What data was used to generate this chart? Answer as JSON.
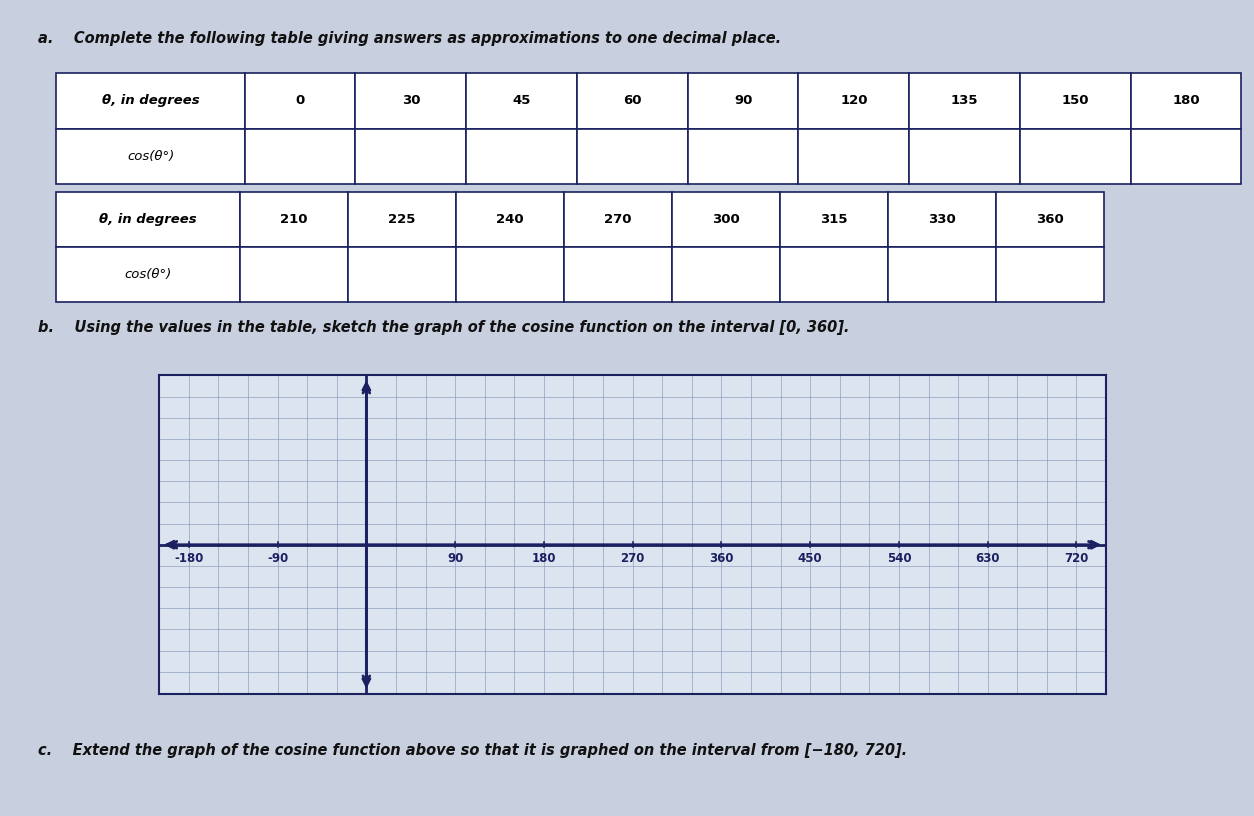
{
  "title_a": "a.    Complete the following table giving answers as approximations to one decimal place.",
  "title_b": "b.    Using the values in the table, sketch the graph of the cosine function on the interval [0, 360].",
  "title_c": "c.    Extend the graph of the cosine function above so that it is graphed on the interval from [−180, 720].",
  "table1_headers": [
    "θ, in degrees",
    "0",
    "30",
    "45",
    "60",
    "90",
    "120",
    "135",
    "150",
    "180"
  ],
  "table1_row2": [
    "cos(θ°)",
    "",
    "",
    "",
    "",
    "",
    "",
    "",
    "",
    ""
  ],
  "table2_headers": [
    "θ, in degrees",
    "210",
    "225",
    "240",
    "270",
    "300",
    "315",
    "330",
    "360"
  ],
  "table2_row2": [
    "cos(θ°)",
    "",
    "",
    "",
    "",
    "",
    "",
    "",
    ""
  ],
  "x_ticks": [
    -180,
    -90,
    90,
    180,
    270,
    360,
    450,
    540,
    630,
    720
  ],
  "graph_bg": "#dce4f0",
  "grid_color": "#8899bb",
  "axis_color": "#1a2060",
  "text_color": "#111111",
  "table_border_color": "#1a2060",
  "background_color": "#c8d0e0",
  "label_color": "#1a2060"
}
